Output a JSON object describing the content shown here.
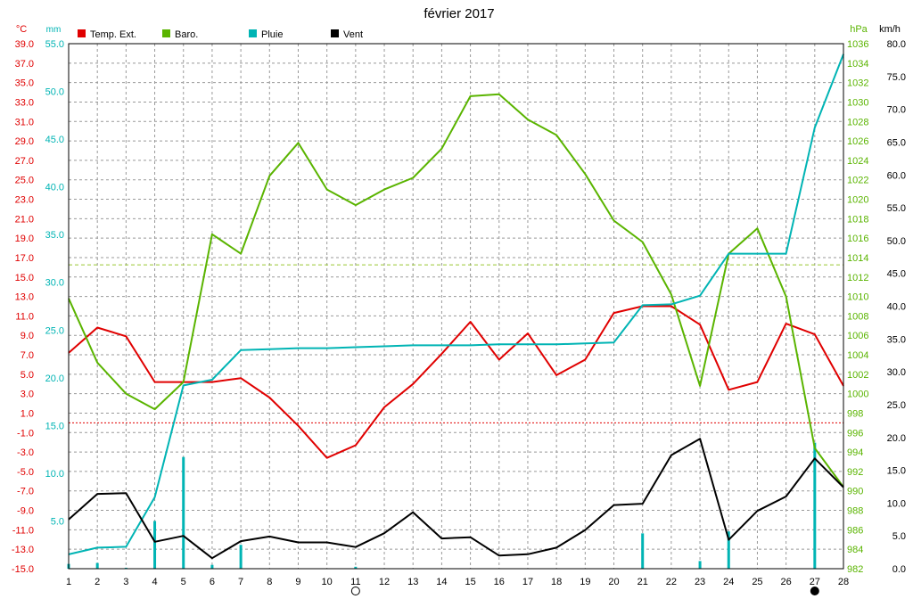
{
  "chart_data": {
    "type": "line",
    "title": "février 2017",
    "units": {
      "temperature": "°C",
      "rain": "mm",
      "pressure": "hPa",
      "wind": "km/h"
    },
    "days": [
      1,
      2,
      3,
      4,
      5,
      6,
      7,
      8,
      9,
      10,
      11,
      12,
      13,
      14,
      15,
      16,
      17,
      18,
      19,
      20,
      21,
      22,
      23,
      24,
      25,
      26,
      27,
      28
    ],
    "axes": {
      "temperature": {
        "min": -15,
        "max": 39,
        "ticks": [
          -15,
          -13,
          -11,
          -9,
          -7,
          -5,
          -3,
          -1,
          1,
          3,
          5,
          7,
          9,
          11,
          13,
          15,
          17,
          19,
          21,
          23,
          25,
          27,
          29,
          31,
          33,
          35,
          37,
          39
        ],
        "labels": [
          "-15.0",
          "-13.0",
          "-11.0",
          "-9.0",
          "-7.0",
          "-5.0",
          "-3.0",
          "-1.0",
          "1.0",
          "3.0",
          "5.0",
          "7.0",
          "9.0",
          "11.0",
          "13.0",
          "15.0",
          "17.0",
          "19.0",
          "21.0",
          "23.0",
          "25.0",
          "27.0",
          "29.0",
          "31.0",
          "33.0",
          "35.0",
          "37.0",
          "39.0"
        ]
      },
      "rain": {
        "min": 0,
        "max": 55,
        "ticks": [
          5,
          10,
          15,
          20,
          25,
          30,
          35,
          40,
          45,
          50,
          55
        ],
        "labels": [
          "5.0",
          "10.0",
          "15.0",
          "20.0",
          "25.0",
          "30.0",
          "35.0",
          "40.0",
          "45.0",
          "50.0",
          "55.0"
        ]
      },
      "pressure": {
        "min": 982,
        "max": 1036,
        "ticks": [
          982,
          984,
          986,
          988,
          990,
          992,
          994,
          996,
          998,
          1000,
          1002,
          1004,
          1006,
          1008,
          1010,
          1012,
          1014,
          1016,
          1018,
          1020,
          1022,
          1024,
          1026,
          1028,
          1030,
          1032,
          1034,
          1036
        ]
      },
      "wind": {
        "min": 0,
        "max": 80,
        "ticks": [
          0,
          5,
          10,
          15,
          20,
          25,
          30,
          35,
          40,
          45,
          50,
          55,
          60,
          65,
          70,
          75,
          80
        ],
        "labels": [
          "0.0",
          "5.0",
          "10.0",
          "15.0",
          "20.0",
          "25.0",
          "30.0",
          "35.0",
          "40.0",
          "45.0",
          "50.0",
          "55.0",
          "60.0",
          "65.0",
          "70.0",
          "75.0",
          "80.0"
        ]
      }
    },
    "series": [
      {
        "name": "Temp. Ext.",
        "color": "#e00000",
        "axis": "temperature",
        "values": [
          7.2,
          9.8,
          8.9,
          4.2,
          4.2,
          4.2,
          4.6,
          2.6,
          -0.3,
          -3.6,
          -2.3,
          1.6,
          4.0,
          7.1,
          10.4,
          6.5,
          9.2,
          4.9,
          6.5,
          11.3,
          12.0,
          12.0,
          10.1,
          3.4,
          4.2,
          10.2,
          9.1,
          3.8
        ]
      },
      {
        "name": "Baro.",
        "color": "#5ab400",
        "axis": "pressure",
        "values": [
          1009.8,
          1003.2,
          1000.0,
          998.4,
          1001.2,
          1016.4,
          1014.4,
          1022.4,
          1025.8,
          1021.0,
          1019.4,
          1021.0,
          1022.2,
          1025.2,
          1030.6,
          1030.8,
          1028.2,
          1026.6,
          1022.6,
          1017.8,
          1015.6,
          1010.2,
          1000.8,
          1014.4,
          1017.0,
          1010.0,
          994.4,
          990.4
        ]
      },
      {
        "name": "Pluie",
        "color": "#00b4b4",
        "axis": "rain",
        "values": [
          1.5,
          2.2,
          2.3,
          7.5,
          19.2,
          19.8,
          22.9,
          23.0,
          23.1,
          23.1,
          23.2,
          23.3,
          23.4,
          23.4,
          23.4,
          23.5,
          23.5,
          23.5,
          23.6,
          23.7,
          27.6,
          27.7,
          28.6,
          33.0,
          33.0,
          33.0,
          46.2,
          53.9
        ]
      },
      {
        "name": "Vent",
        "color": "#000000",
        "axis": "wind",
        "values": [
          7.5,
          11.4,
          11.5,
          4.1,
          5.0,
          1.6,
          4.2,
          4.9,
          4.0,
          4.0,
          3.3,
          5.4,
          8.6,
          4.6,
          4.8,
          2.0,
          2.2,
          3.2,
          5.9,
          9.7,
          9.9,
          17.3,
          19.8,
          4.4,
          8.8,
          11.0,
          16.8,
          12.4
        ]
      },
      {
        "name": "daily-rain",
        "color": "#00b4b4",
        "axis": "rain",
        "values": [
          0.5,
          0.6,
          0.1,
          5.0,
          11.7,
          0.4,
          2.5,
          0,
          0,
          0,
          0.2,
          0,
          0,
          0,
          0,
          0,
          0,
          0,
          0,
          0,
          3.7,
          0,
          0.8,
          3.9,
          0,
          0,
          13.2,
          0
        ]
      }
    ],
    "reference_lines": [
      {
        "axis": "pressure",
        "value": 1013.25,
        "color": "#9ac832",
        "style": "dashed"
      },
      {
        "axis": "temperature",
        "value": 0,
        "color": "#e00000",
        "style": "dotted"
      }
    ],
    "moon_phases": [
      {
        "day": 11,
        "phase": "full"
      },
      {
        "day": 27,
        "phase": "new"
      }
    ],
    "grid": true
  },
  "colors": {
    "temperature": "#e00000",
    "rain": "#00b4b4",
    "pressure": "#5ab400",
    "wind": "#000000",
    "grid": "#999999"
  }
}
